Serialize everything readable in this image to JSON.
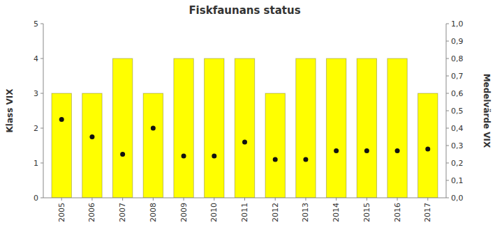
{
  "chart_data": {
    "type": "bar",
    "title": "Fiskfaunans status",
    "categories": [
      "2005",
      "2006",
      "2007",
      "2008",
      "2009",
      "2010",
      "2011",
      "2012",
      "2013",
      "2014",
      "2015",
      "2016",
      "2017"
    ],
    "ylabel": "Klass VIX",
    "y2label": "Medelvärde VIX",
    "series": [
      {
        "type": "bar",
        "color": "#FFFF00",
        "values": [
          3,
          3,
          4,
          3,
          4,
          4,
          4,
          3,
          4,
          4,
          4,
          4,
          3
        ]
      },
      {
        "type": "scatter",
        "axis": "y2",
        "color": "#111111",
        "marker": "circle",
        "values": [
          0.45,
          0.35,
          0.25,
          0.4,
          0.24,
          0.24,
          0.32,
          0.22,
          0.22,
          0.27,
          0.27,
          0.27,
          0.28
        ]
      }
    ],
    "ylim": [
      0,
      5
    ],
    "yticks": [
      0,
      1,
      2,
      3,
      4,
      5
    ],
    "y2lim": [
      0.0,
      1.0
    ],
    "y2ticks": [
      {
        "value": 0.0,
        "label": "0,0"
      },
      {
        "value": 0.1,
        "label": "0,1"
      },
      {
        "value": 0.2,
        "label": "0,2"
      },
      {
        "value": 0.3,
        "label": "0,3"
      },
      {
        "value": 0.4,
        "label": "0,4"
      },
      {
        "value": 0.5,
        "label": "0,5"
      },
      {
        "value": 0.6,
        "label": "0,6"
      },
      {
        "value": 0.7,
        "label": "0,7"
      },
      {
        "value": 0.8,
        "label": "0,8"
      },
      {
        "value": 0.9,
        "label": "0,9"
      },
      {
        "value": 1.0,
        "label": "1,0"
      }
    ],
    "grid": false
  }
}
